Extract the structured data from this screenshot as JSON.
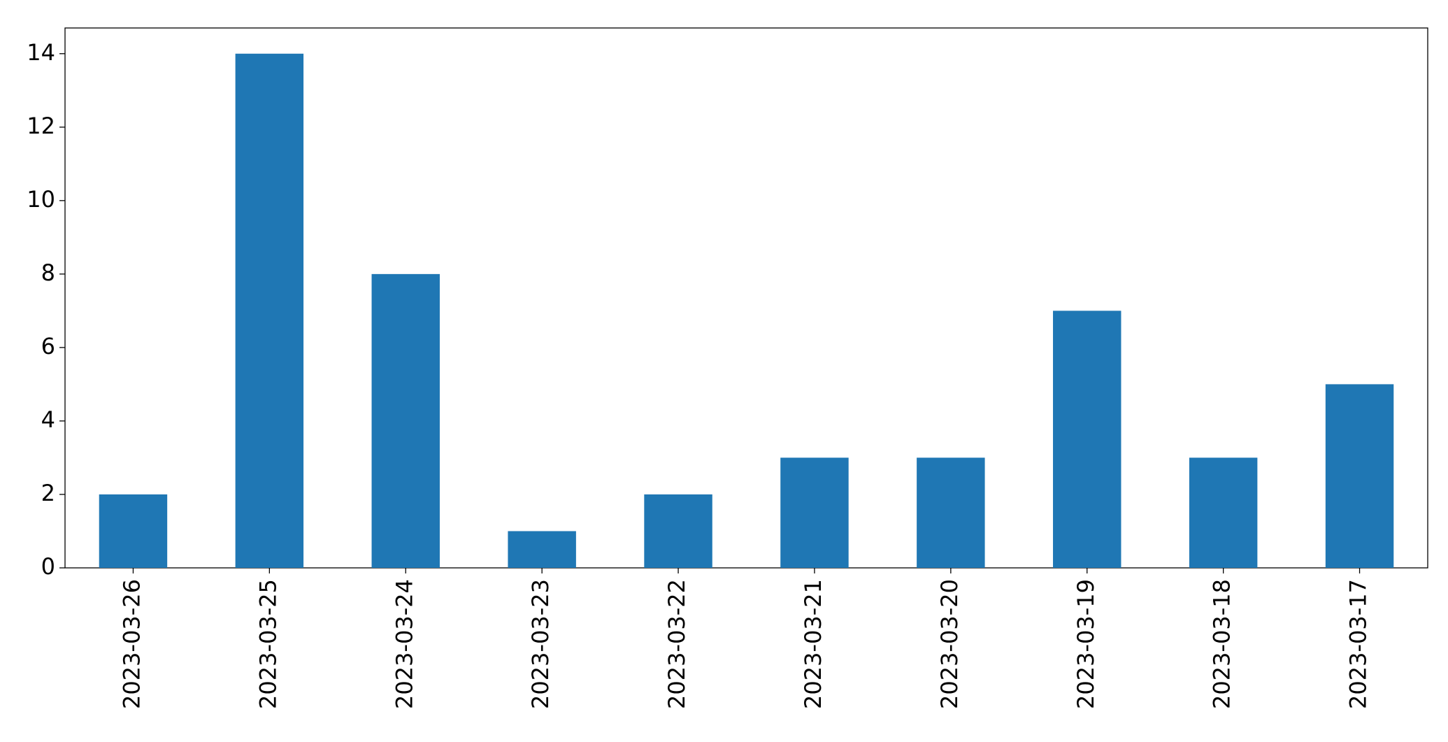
{
  "chart_data": {
    "type": "bar",
    "categories": [
      "2023-03-26",
      "2023-03-25",
      "2023-03-24",
      "2023-03-23",
      "2023-03-22",
      "2023-03-21",
      "2023-03-20",
      "2023-03-19",
      "2023-03-18",
      "2023-03-17"
    ],
    "values": [
      2,
      14,
      8,
      1,
      2,
      3,
      3,
      7,
      3,
      5
    ],
    "color": "#1f77b4",
    "ylim": [
      0,
      14.7
    ],
    "yticks": [
      0,
      2,
      4,
      6,
      8,
      10,
      12,
      14
    ],
    "grid": false
  }
}
